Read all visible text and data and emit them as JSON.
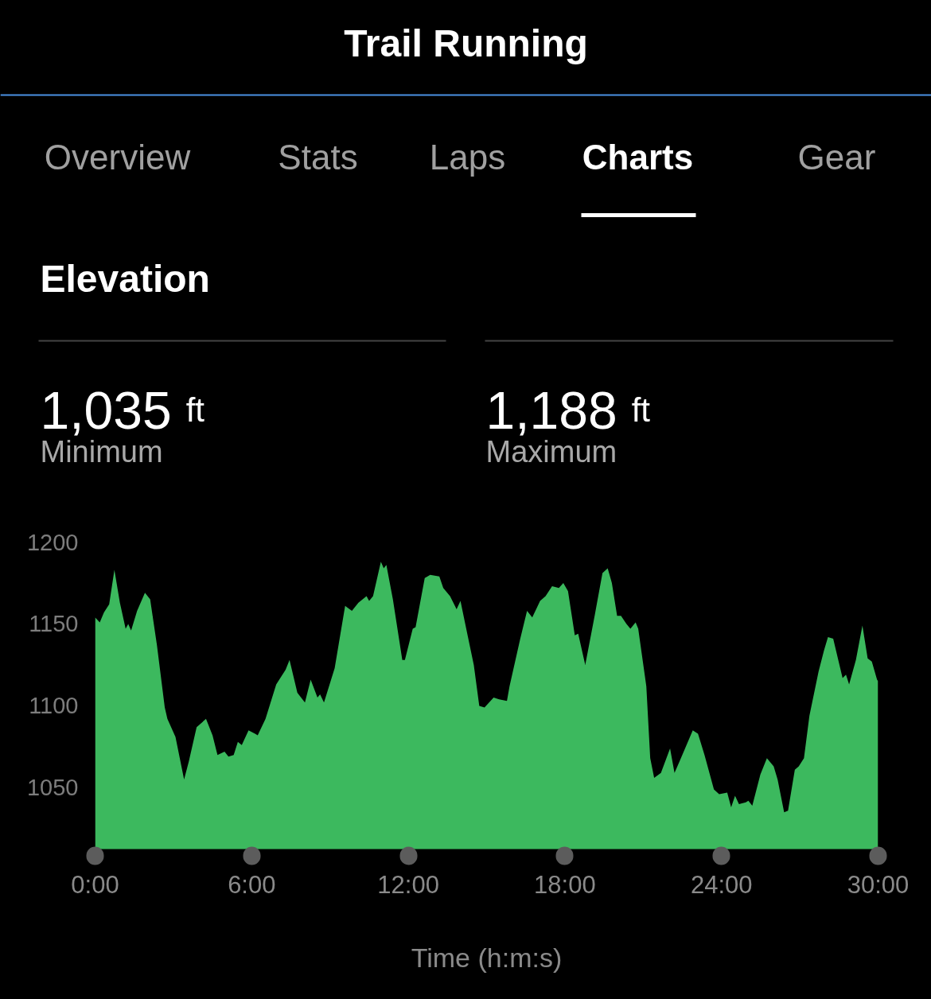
{
  "chart_data": {
    "type": "area",
    "title": "Elevation",
    "xlabel": "Time (h:m:s)",
    "color": "#3cb95e",
    "x": [
      0,
      0.18,
      0.34,
      0.54,
      0.74,
      0.95,
      1.17,
      1.27,
      1.38,
      1.61,
      1.91,
      2.11,
      2.37,
      2.67,
      2.77,
      3.08,
      3.41,
      3.59,
      3.89,
      4.25,
      4.5,
      4.69,
      4.96,
      5.11,
      5.31,
      5.47,
      5.62,
      5.88,
      6.13,
      6.23,
      6.53,
      6.94,
      7.3,
      7.45,
      7.75,
      8.04,
      8.26,
      8.52,
      8.62,
      8.77,
      9.18,
      9.58,
      9.84,
      10.09,
      10.4,
      10.5,
      10.65,
      10.95,
      11.06,
      11.16,
      11.41,
      11.77,
      11.87,
      12.17,
      12.28,
      12.63,
      12.84,
      13.19,
      13.34,
      13.6,
      13.85,
      14,
      14.26,
      14.51,
      14.72,
      14.92,
      15.27,
      15.48,
      15.78,
      15.88,
      16.29,
      16.55,
      16.75,
      17.05,
      17.26,
      17.51,
      17.77,
      17.94,
      18.12,
      18.38,
      18.51,
      18.78,
      19.14,
      19.44,
      19.64,
      19.8,
      20,
      20.15,
      20.36,
      20.51,
      20.71,
      20.81,
      21.12,
      21.27,
      21.42,
      21.68,
      22.03,
      22.2,
      22.39,
      22.9,
      23.1,
      23.35,
      23.71,
      23.91,
      24.22,
      24.37,
      24.52,
      24.67,
      24.93,
      25.03,
      25.18,
      25.49,
      25.74,
      26,
      26.15,
      26.4,
      26.55,
      26.81,
      26.96,
      27.16,
      27.37,
      27.72,
      27.93,
      28.08,
      28.28,
      28.64,
      28.77,
      28.89,
      29.15,
      29.4,
      29.6,
      29.76,
      29.96,
      30
    ],
    "values": [
      1154,
      1151,
      1157,
      1162,
      1183,
      1163,
      1147,
      1150,
      1146,
      1158,
      1169,
      1165,
      1137,
      1099,
      1092,
      1081,
      1055,
      1066,
      1087,
      1092,
      1082,
      1070,
      1072,
      1069,
      1070,
      1078,
      1076,
      1085,
      1083,
      1082,
      1092,
      1113,
      1122,
      1128,
      1108,
      1102,
      1116,
      1105,
      1107,
      1102,
      1123,
      1161,
      1158,
      1163,
      1167,
      1164,
      1167,
      1188,
      1184,
      1186,
      1165,
      1128,
      1128,
      1147,
      1148,
      1178,
      1180,
      1179,
      1172,
      1167,
      1159,
      1164,
      1144,
      1125,
      1100,
      1099,
      1105,
      1104,
      1103,
      1112,
      1141,
      1158,
      1154,
      1164,
      1167,
      1173,
      1172,
      1175,
      1170,
      1143,
      1144,
      1125,
      1155,
      1181,
      1184,
      1175,
      1155,
      1155,
      1150,
      1147,
      1151,
      1147,
      1112,
      1068,
      1056,
      1059,
      1074,
      1059,
      1066,
      1085,
      1083,
      1070,
      1049,
      1046,
      1047,
      1038,
      1045,
      1040,
      1041,
      1042,
      1039,
      1058,
      1068,
      1063,
      1055,
      1035,
      1036,
      1061,
      1063,
      1068,
      1094,
      1121,
      1134,
      1142,
      1141,
      1117,
      1119,
      1113,
      1128,
      1149,
      1129,
      1127,
      1116,
      1115
    ],
    "xlim": [
      0,
      30
    ],
    "ylim": [
      1013,
      1200
    ],
    "xticks": [
      {
        "value": 0,
        "label": "0:00"
      },
      {
        "value": 6,
        "label": "6:00"
      },
      {
        "value": 12,
        "label": "12:00"
      },
      {
        "value": 18,
        "label": "18:00"
      },
      {
        "value": 24,
        "label": "24:00"
      },
      {
        "value": 30,
        "label": "30:00"
      }
    ],
    "yticks": [
      1050,
      1100,
      1150,
      1200
    ],
    "annotations": [
      "Trail Running",
      "Overview",
      "Stats",
      "Laps",
      "Charts",
      "Gear",
      "1,035 ft",
      "Minimum",
      "1,188 ft",
      "Maximum"
    ]
  }
}
